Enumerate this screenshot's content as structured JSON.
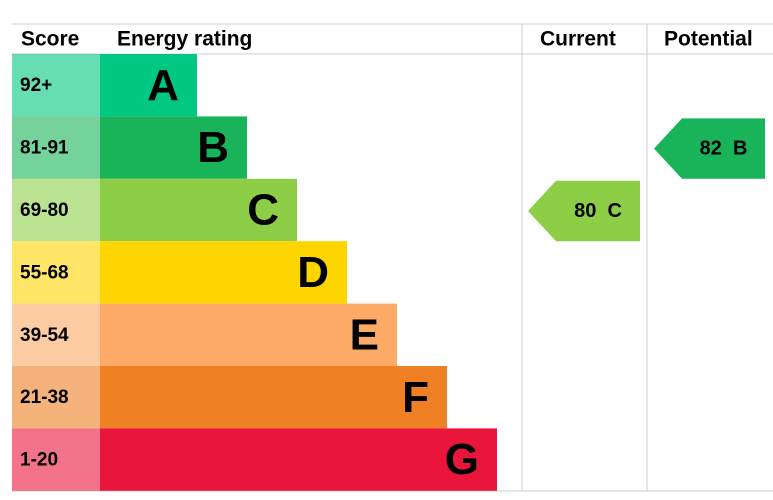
{
  "header": {
    "score": "Score",
    "rating": "Energy rating",
    "current": "Current",
    "potential": "Potential"
  },
  "bands": [
    {
      "score": "92+",
      "letter": "A",
      "color": "#00c781"
    },
    {
      "score": "81-91",
      "letter": "B",
      "color": "#19b459"
    },
    {
      "score": "69-80",
      "letter": "C",
      "color": "#8dce46"
    },
    {
      "score": "55-68",
      "letter": "D",
      "color": "#ffd500"
    },
    {
      "score": "39-54",
      "letter": "E",
      "color": "#fcaa65"
    },
    {
      "score": "21-38",
      "letter": "F",
      "color": "#ef8023"
    },
    {
      "score": "1-20",
      "letter": "G",
      "color": "#e9153b"
    }
  ],
  "current": {
    "score": 80,
    "letter": "C"
  },
  "potential": {
    "score": 82,
    "letter": "B"
  }
}
